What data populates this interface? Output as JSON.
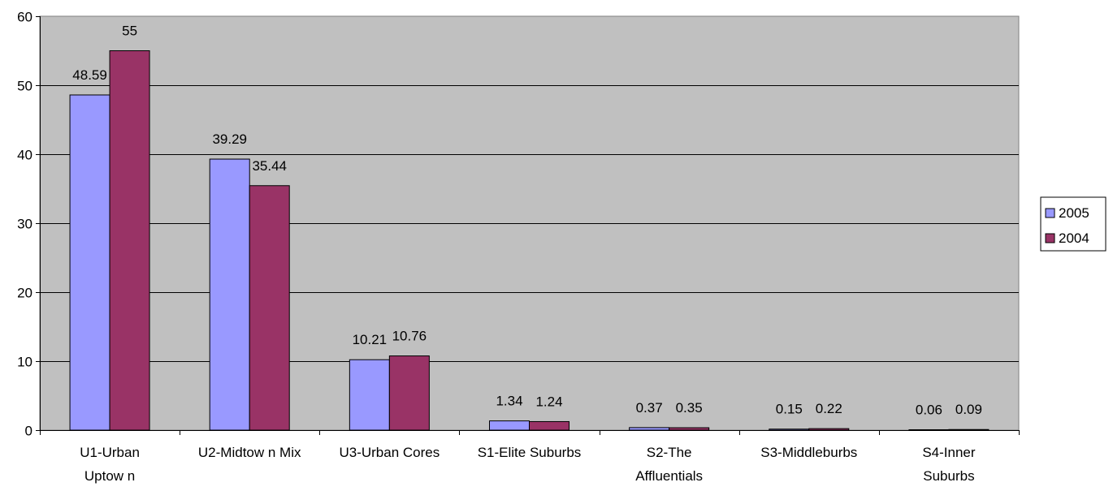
{
  "chart_data": {
    "type": "bar",
    "categories": [
      [
        "U1-Urban",
        "Uptow n"
      ],
      [
        "U2-Midtow n Mix"
      ],
      [
        "U3-Urban Cores"
      ],
      [
        "S1-Elite Suburbs"
      ],
      [
        "S2-The",
        "Affluentials"
      ],
      [
        "S3-Middleburbs"
      ],
      [
        "S4-Inner",
        "Suburbs"
      ]
    ],
    "series": [
      {
        "name": "2005",
        "color": "#9999ff",
        "values": [
          48.59,
          39.29,
          10.21,
          1.34,
          0.37,
          0.15,
          0.06
        ],
        "labels": [
          "48.59",
          "39.29",
          "10.21",
          "1.34",
          "0.37",
          "0.15",
          "0.06"
        ]
      },
      {
        "name": "2004",
        "color": "#993366",
        "values": [
          55,
          35.44,
          10.76,
          1.24,
          0.35,
          0.22,
          0.09
        ],
        "labels": [
          "55",
          "35.44",
          "10.76",
          "1.24",
          "0.35",
          "0.22",
          "0.09"
        ]
      }
    ],
    "ylim": [
      0,
      60
    ],
    "yticks": [
      "0",
      "10",
      "20",
      "30",
      "40",
      "50",
      "60"
    ],
    "grid": true,
    "plot_background": "#c0c0c0",
    "legend_position": "right"
  }
}
